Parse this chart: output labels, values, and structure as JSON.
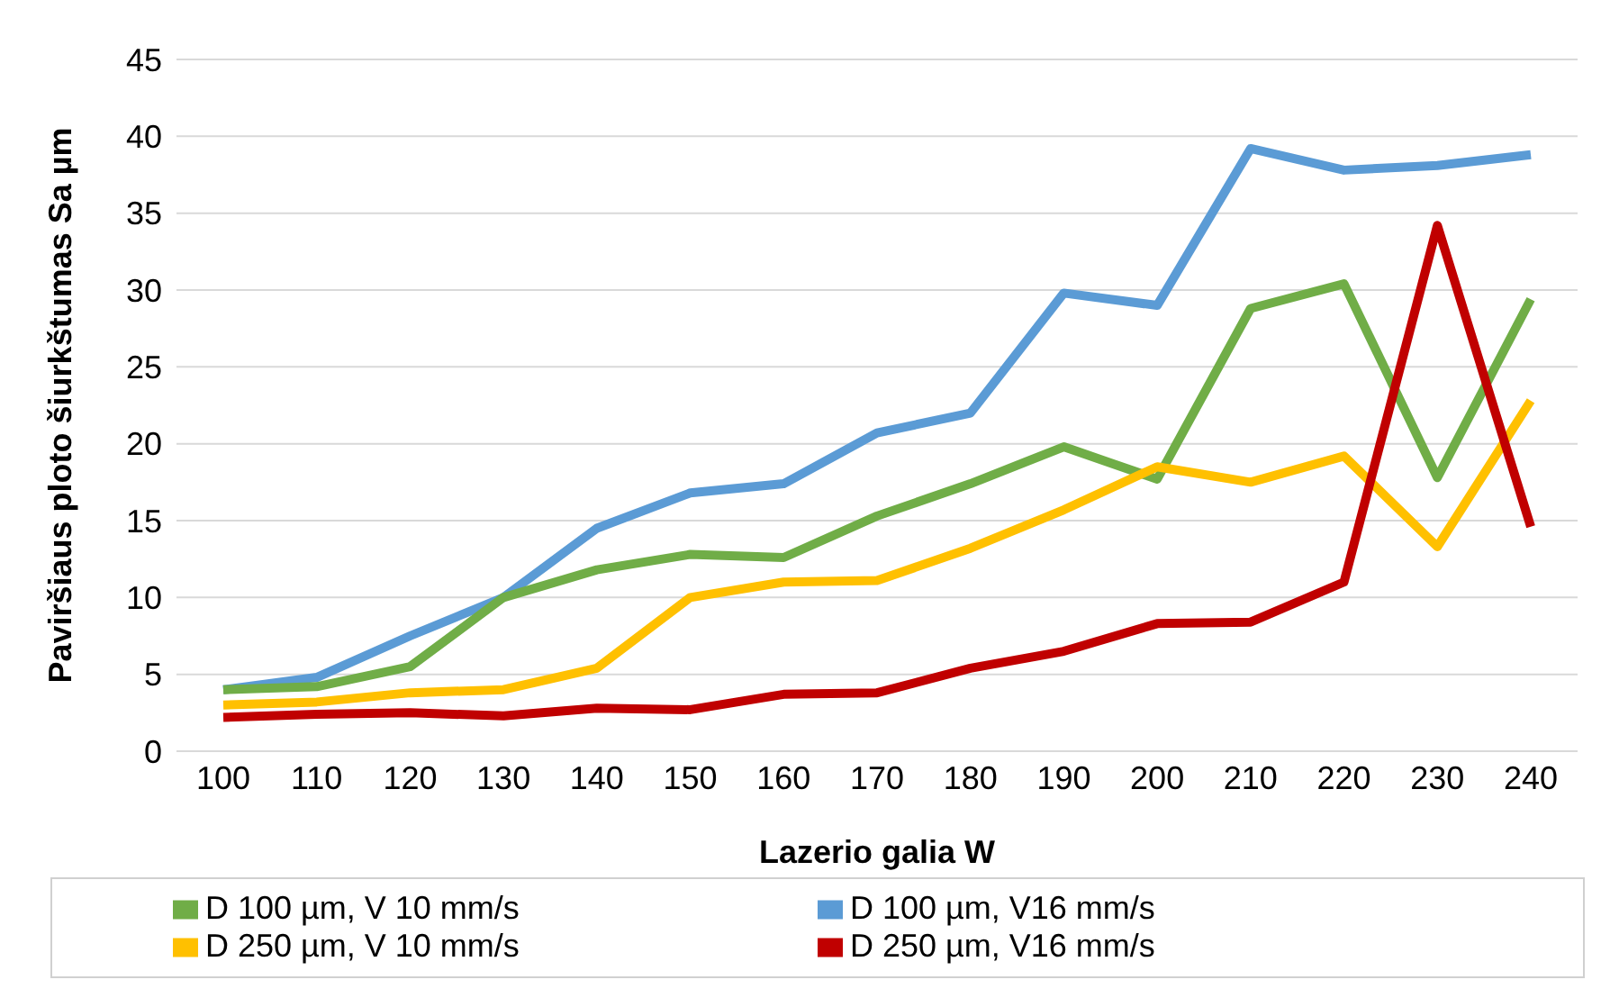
{
  "chart_data": {
    "type": "line",
    "xlabel": "Lazerio galia W",
    "ylabel": "Paviršiaus ploto šiurkštumas Sa µm",
    "categories": [
      "100",
      "110",
      "120",
      "130",
      "140",
      "150",
      "160",
      "170",
      "180",
      "190",
      "200",
      "210",
      "220",
      "230",
      "240"
    ],
    "series": [
      {
        "name": "D 100 µm, V16 mm/s",
        "color": "#5b9bd5",
        "values": [
          4.0,
          4.8,
          7.5,
          10,
          14.5,
          16.8,
          17.4,
          20.7,
          22,
          29.8,
          29,
          39.2,
          37.8,
          38.1,
          38.8
        ]
      },
      {
        "name": "D 100 µm, V 10 mm/s",
        "color": "#70ad47",
        "values": [
          4,
          4.2,
          5.5,
          10,
          11.8,
          12.8,
          12.6,
          15.3,
          17.4,
          19.8,
          17.7,
          28.8,
          30.4,
          17.8,
          29.4
        ]
      },
      {
        "name": "D 250 µm, V 10 mm/s",
        "color": "#ffc000",
        "values": [
          3,
          3.2,
          3.8,
          4,
          5.4,
          10,
          11,
          11.1,
          13.2,
          15.7,
          18.5,
          17.5,
          19.2,
          13.3,
          22.8
        ]
      },
      {
        "name": "D 250 µm, V16 mm/s",
        "color": "#c00000",
        "values": [
          2.2,
          2.4,
          2.5,
          2.3,
          2.8,
          2.7,
          3.7,
          3.8,
          5.4,
          6.5,
          8.3,
          8.4,
          11,
          34.2,
          14.6
        ]
      }
    ],
    "ylim": [
      0,
      45
    ],
    "yticks": [
      0,
      5,
      10,
      15,
      20,
      25,
      30,
      35,
      40,
      45
    ],
    "grid": "y",
    "legend": "bottom",
    "marker": "none",
    "line_style": "solid"
  }
}
